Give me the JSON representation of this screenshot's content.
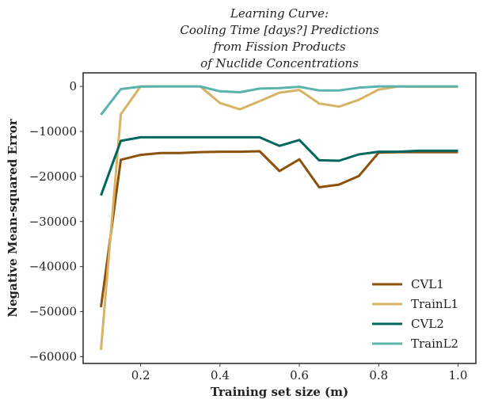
{
  "chart_data": {
    "type": "line",
    "title_lines": [
      "Learning Curve:",
      "Cooling Time [days?] Predictions",
      "from Fission Products",
      "of Nuclide Concentrations"
    ],
    "xlabel": "Training set size (m)",
    "ylabel": "Negative Mean-squared Error",
    "xlim": [
      0.055,
      1.045
    ],
    "ylim": [
      -61500,
      3000
    ],
    "xticks": [
      0.2,
      0.4,
      0.6,
      0.8,
      1.0
    ],
    "xtick_labels": [
      "0.2",
      "0.4",
      "0.6",
      "0.8",
      "1.0"
    ],
    "yticks": [
      0,
      -10000,
      -20000,
      -30000,
      -40000,
      -50000,
      -60000
    ],
    "ytick_labels": [
      "0",
      "−10000",
      "−20000",
      "−30000",
      "−40000",
      "−50000",
      "−60000"
    ],
    "grid": false,
    "legend_position": "lower-right",
    "x": [
      0.1,
      0.15,
      0.2,
      0.25,
      0.3,
      0.35,
      0.4,
      0.45,
      0.5,
      0.55,
      0.6,
      0.65,
      0.7,
      0.75,
      0.8,
      0.85,
      0.9,
      0.95,
      1.0
    ],
    "series": [
      {
        "name": "CVL1",
        "color": "#8c510a",
        "values": [
          -49000,
          -16300,
          -15200,
          -14800,
          -14800,
          -14600,
          -14500,
          -14500,
          -14400,
          -18800,
          -16200,
          -22400,
          -21800,
          -19900,
          -14700,
          -14600,
          -14600,
          -14600,
          -14600
        ]
      },
      {
        "name": "TrainL1",
        "color": "#d8b365",
        "values": [
          -58500,
          -6200,
          0,
          0,
          0,
          0,
          -3700,
          -5100,
          -3300,
          -1400,
          -800,
          -3800,
          -4500,
          -3000,
          -700,
          0,
          -100,
          -100,
          -100
        ]
      },
      {
        "name": "CVL2",
        "color": "#01665e",
        "values": [
          -24200,
          -12100,
          -11300,
          -11300,
          -11300,
          -11300,
          -11300,
          -11300,
          -11300,
          -13200,
          -11900,
          -16400,
          -16500,
          -15100,
          -14500,
          -14500,
          -14300,
          -14300,
          -14300
        ]
      },
      {
        "name": "TrainL2",
        "color": "#5ab4ac",
        "values": [
          -6300,
          -600,
          -50,
          0,
          0,
          0,
          -1100,
          -1300,
          -500,
          -400,
          -100,
          -900,
          -900,
          -300,
          0,
          0,
          0,
          0,
          0
        ]
      }
    ]
  }
}
